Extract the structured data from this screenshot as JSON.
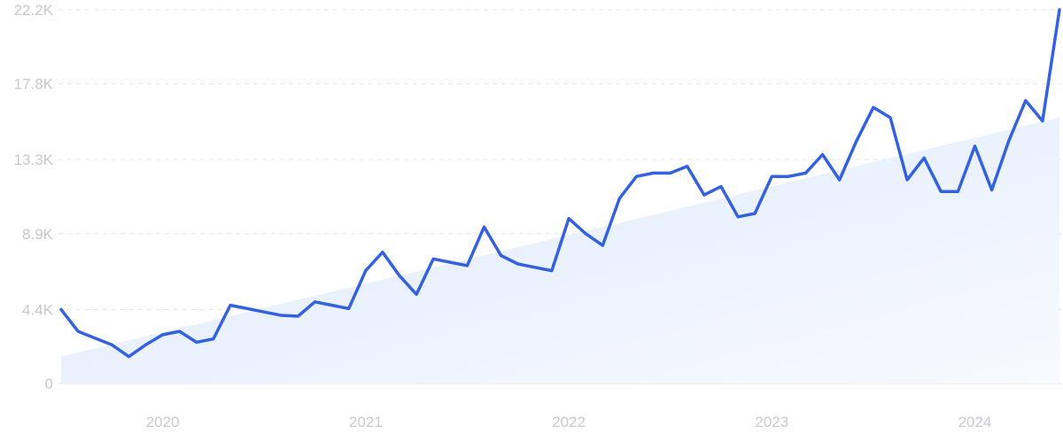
{
  "chart_data": {
    "type": "line",
    "title": "",
    "xlabel": "",
    "ylabel": "",
    "y_ticks": [
      "0",
      "4.4K",
      "8.9K",
      "13.3K",
      "17.8K",
      "22.2K"
    ],
    "y_tick_values": [
      0,
      4400,
      8900,
      13300,
      17800,
      22200
    ],
    "x_ticks": [
      "2020",
      "2021",
      "2022",
      "2023",
      "2024"
    ],
    "x_tick_values": [
      "2020-01",
      "2021-01",
      "2022-01",
      "2023-01",
      "2024-01"
    ],
    "ylim": [
      0,
      22200
    ],
    "xlim": [
      "2019-07",
      "2024-06"
    ],
    "grid": true,
    "colors": {
      "line": "#3462de",
      "trend_fill_top": "#dde9fb",
      "trend_fill_bottom": "#f5f9ff",
      "grid": "#e3e5ea",
      "tick_text": "#c7c9cf"
    },
    "trend": {
      "x": [
        "2019-07",
        "2024-06"
      ],
      "y": [
        1600,
        15800
      ]
    },
    "series": [
      {
        "x": [
          "2019-07",
          "2019-08",
          "2019-09",
          "2019-10",
          "2019-11",
          "2019-12",
          "2020-01",
          "2020-02",
          "2020-03",
          "2020-04",
          "2020-05",
          "2020-06",
          "2020-07",
          "2020-08",
          "2020-09",
          "2020-10",
          "2020-11",
          "2020-12",
          "2021-01",
          "2021-02",
          "2021-03",
          "2021-04",
          "2021-05",
          "2021-06",
          "2021-07",
          "2021-08",
          "2021-09",
          "2021-10",
          "2021-11",
          "2021-12",
          "2022-01",
          "2022-02",
          "2022-03",
          "2022-04",
          "2022-05",
          "2022-06",
          "2022-07",
          "2022-08",
          "2022-09",
          "2022-10",
          "2022-11",
          "2022-12",
          "2023-01",
          "2023-02",
          "2023-03",
          "2023-04",
          "2023-05",
          "2023-06",
          "2023-07",
          "2023-08",
          "2023-09",
          "2023-10",
          "2023-11",
          "2023-12",
          "2024-01",
          "2024-02",
          "2024-03",
          "2024-04",
          "2024-05",
          "2024-06"
        ],
        "values": [
          4400,
          3100,
          2700,
          2300,
          1600,
          2300,
          2900,
          3100,
          2450,
          2650,
          4650,
          4450,
          4250,
          4050,
          4000,
          4850,
          4650,
          4450,
          6700,
          7800,
          6400,
          5300,
          7400,
          7200,
          7000,
          9300,
          7600,
          7100,
          6900,
          6700,
          9800,
          8900,
          8200,
          11000,
          12300,
          12500,
          12500,
          12900,
          11200,
          11700,
          9900,
          10100,
          12300,
          12300,
          12500,
          13600,
          12100,
          14400,
          16400,
          15800,
          12100,
          13400,
          11400,
          11400,
          14100,
          11500,
          14400,
          16800,
          15600,
          22200
        ]
      }
    ]
  }
}
